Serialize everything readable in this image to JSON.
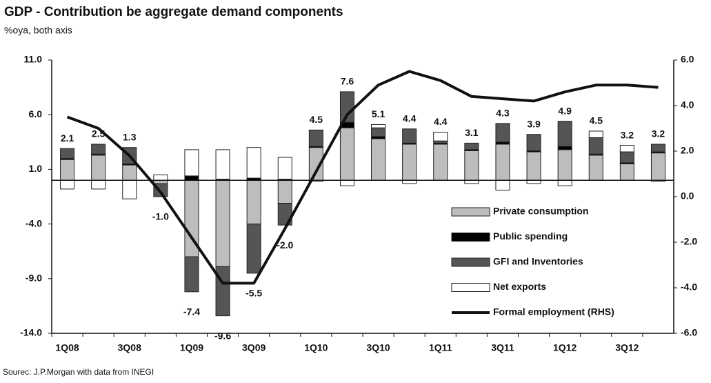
{
  "chart_data": {
    "type": "stacked-bar-line",
    "title": "GDP - Contribution be aggregate demand components",
    "subtitle": "%oya, both axis",
    "source": "Sourec: J.P.Morgan with data from INEGI",
    "categories": [
      "1Q08",
      null,
      "3Q08",
      null,
      "1Q09",
      null,
      "3Q09",
      null,
      "1Q10",
      null,
      "3Q10",
      null,
      "1Q11",
      null,
      "3Q11",
      null,
      "1Q12",
      null,
      "3Q12",
      null
    ],
    "ylim": [
      -14,
      11
    ],
    "yticks": [
      {
        "value": -14,
        "label": "-14.0"
      },
      {
        "value": -9,
        "label": "-9.0"
      },
      {
        "value": -4,
        "label": "-4.0"
      },
      {
        "value": 1,
        "label": "1.0"
      },
      {
        "value": 6,
        "label": "6.0"
      },
      {
        "value": 11,
        "label": "11.0"
      }
    ],
    "y2lim": [
      -6,
      6
    ],
    "y2ticks": [
      {
        "value": -6,
        "label": "-6.0"
      },
      {
        "value": -4,
        "label": "-4.0"
      },
      {
        "value": -2,
        "label": "-2.0"
      },
      {
        "value": 0,
        "label": "0.0"
      },
      {
        "value": 2,
        "label": "2.0"
      },
      {
        "value": 4,
        "label": "4.0"
      },
      {
        "value": 6,
        "label": "6.0"
      }
    ],
    "legend": "lower right",
    "series": [
      {
        "name": "Private consumption",
        "type": "bar",
        "color": "#bdbdbd",
        "values": [
          1.9,
          2.3,
          1.4,
          -0.3,
          -7.0,
          -7.9,
          -4.0,
          -2.1,
          3.0,
          4.8,
          3.8,
          3.3,
          3.3,
          2.7,
          3.3,
          2.6,
          2.8,
          2.3,
          1.5,
          2.5
        ]
      },
      {
        "name": "Public spending",
        "type": "bar",
        "color": "#000000",
        "values": [
          0.1,
          0.1,
          0.1,
          0.0,
          0.4,
          0.1,
          0.2,
          0.1,
          0.1,
          0.5,
          0.2,
          0.1,
          0.1,
          0.1,
          0.2,
          0.1,
          0.3,
          0.1,
          0.1,
          0.1
        ]
      },
      {
        "name": "GFI and Inventories",
        "type": "bar",
        "color": "#555555",
        "values": [
          0.9,
          0.9,
          1.5,
          -1.2,
          -3.2,
          -4.5,
          -4.5,
          -2.0,
          1.5,
          2.8,
          0.8,
          1.3,
          0.2,
          0.6,
          1.7,
          1.5,
          2.3,
          1.5,
          1.0,
          0.7
        ]
      },
      {
        "name": "Net exports",
        "type": "bar",
        "color": "#ffffff",
        "values": [
          -0.8,
          -0.8,
          -1.7,
          0.5,
          2.4,
          2.7,
          2.8,
          2.0,
          -0.1,
          -0.5,
          0.3,
          -0.3,
          0.8,
          -0.3,
          -0.9,
          -0.3,
          -0.5,
          0.6,
          0.6,
          -0.1
        ]
      },
      {
        "name": "Formal employment (RHS)",
        "type": "line",
        "axis": "y2",
        "color": "#111111",
        "values": [
          3.5,
          3.0,
          1.8,
          0.2,
          -1.8,
          -3.8,
          -3.8,
          -1.4,
          1.1,
          3.6,
          4.9,
          5.5,
          5.1,
          4.4,
          4.3,
          4.2,
          4.6,
          4.9,
          4.9,
          4.8
        ]
      }
    ],
    "totals": {
      "values": [
        2.1,
        2.5,
        1.3,
        -1.0,
        -7.4,
        -9.6,
        -5.5,
        -2.0,
        4.5,
        7.6,
        5.1,
        4.4,
        4.4,
        3.1,
        4.3,
        3.9,
        4.9,
        4.5,
        3.2,
        3.2
      ],
      "value_labels": [
        "2.1",
        "2.5",
        "1.3",
        "-1.0",
        "-7.4",
        "-9.6",
        "-5.5",
        "-2.0",
        "4.5",
        "7.6",
        "5.1",
        "4.4",
        "4.4",
        "3.1",
        "4.3",
        "3.9",
        "4.9",
        "4.5",
        "3.2",
        "3.2"
      ]
    }
  }
}
